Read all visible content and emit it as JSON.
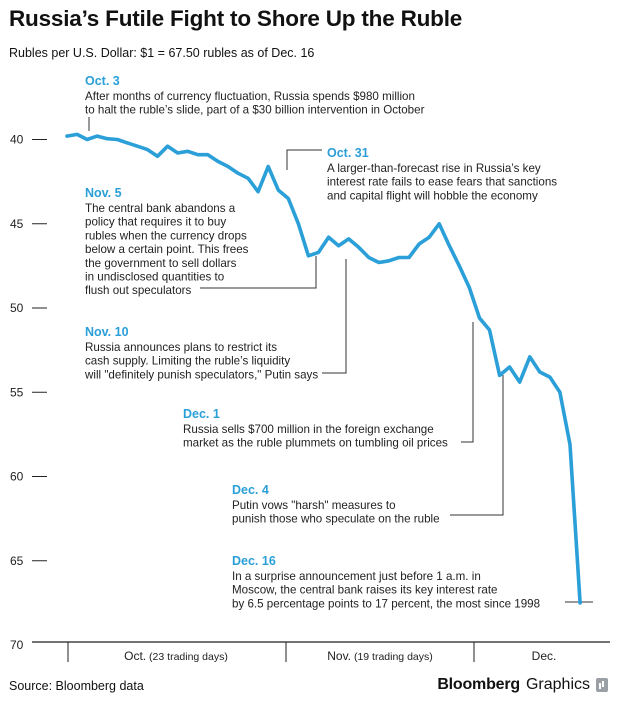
{
  "header": {
    "title": "Russia’s Futile Fight to Shore Up the Ruble",
    "subtitle": "Rubles per U.S. Dollar: $1 = 67.50 rubles as of Dec. 16"
  },
  "footer": {
    "source": "Source: Bloomberg data",
    "brand_bold": "Bloomberg",
    "brand_regular": "Graphics"
  },
  "colors": {
    "line": "#2a9fd8",
    "annotation_date": "#2a9fd8",
    "axis": "#222222",
    "leader": "#333333"
  },
  "chart_data": {
    "type": "line",
    "title": "Russia’s Futile Fight to Shore Up the Ruble",
    "ylabel": "Rubles per U.S. Dollar",
    "y_inverted": true,
    "ylim": [
      39,
      70
    ],
    "yticks": [
      40,
      45,
      50,
      55,
      60,
      65,
      70
    ],
    "months": [
      {
        "name": "Oct.",
        "note": "(23 trading days)",
        "start": 1,
        "end": 23
      },
      {
        "name": "Nov.",
        "note": "(19 trading days)",
        "start": 24,
        "end": 42
      },
      {
        "name": "Dec.",
        "note": "",
        "start": 43,
        "end": 54
      }
    ],
    "series": [
      {
        "x": [
          1,
          2,
          3,
          4,
          5,
          6,
          7,
          8,
          9,
          10,
          11,
          12,
          13,
          14,
          15,
          16,
          17,
          18,
          19,
          20,
          21,
          22,
          23,
          24,
          25,
          26,
          27,
          28,
          29,
          30,
          31,
          32,
          33,
          34,
          35,
          36,
          37,
          38,
          39,
          40,
          41,
          42,
          43,
          44,
          45,
          46,
          47,
          48,
          49,
          50,
          51,
          52
        ],
        "values": [
          39.8,
          39.7,
          40.0,
          39.8,
          39.95,
          40.0,
          40.2,
          40.4,
          40.6,
          41.0,
          40.4,
          40.8,
          40.7,
          40.9,
          40.9,
          41.3,
          41.6,
          42.0,
          42.3,
          43.1,
          41.6,
          43.0,
          43.5,
          45.0,
          46.9,
          46.7,
          45.8,
          46.3,
          45.9,
          46.4,
          47.0,
          47.3,
          47.2,
          47.0,
          47.0,
          46.2,
          45.8,
          45.0,
          46.3,
          47.5,
          48.8,
          50.6,
          51.3,
          54.0,
          53.5,
          54.4,
          52.9,
          53.8,
          54.1,
          55.0,
          58.1,
          67.5
        ]
      }
    ],
    "annotations": [
      {
        "id": "oct3",
        "date": "Oct. 3",
        "lines": [
          "After months of currency fluctuation, Russia spends $980 million",
          "to halt the ruble’s slide, part of a $30 billion intervention in October"
        ]
      },
      {
        "id": "oct31",
        "date": "Oct. 31",
        "lines": [
          "A larger-than-forecast rise in Russia’s key",
          "interest rate fails to ease fears that sanctions",
          "and capital flight will hobble the economy"
        ]
      },
      {
        "id": "nov5",
        "date": "Nov. 5",
        "lines": [
          "The central bank abandons a",
          "policy that requires it to buy",
          "rubles when the currency drops",
          "below a certain point. This frees",
          "the government to sell dollars",
          "in undisclosed quantities to",
          "flush out speculators"
        ]
      },
      {
        "id": "nov10",
        "date": "Nov. 10",
        "lines": [
          "Russia announces plans to restrict its",
          "cash supply. Limiting the ruble’s liquidity",
          "will \"definitely punish speculators,\" Putin says"
        ]
      },
      {
        "id": "dec1",
        "date": "Dec. 1",
        "lines": [
          "Russia sells $700 million in the foreign exchange",
          "market as the ruble plummets on tumbling oil prices"
        ]
      },
      {
        "id": "dec4",
        "date": "Dec. 4",
        "lines": [
          "Putin vows \"harsh\" measures to",
          "punish those who speculate on the ruble"
        ]
      },
      {
        "id": "dec16",
        "date": "Dec. 16",
        "lines": [
          "In a surprise announcement just before 1 a.m. in",
          "Moscow, the central bank raises its key interest rate",
          "by 6.5 percentage points to 17 percent, the most since 1998"
        ]
      }
    ]
  }
}
